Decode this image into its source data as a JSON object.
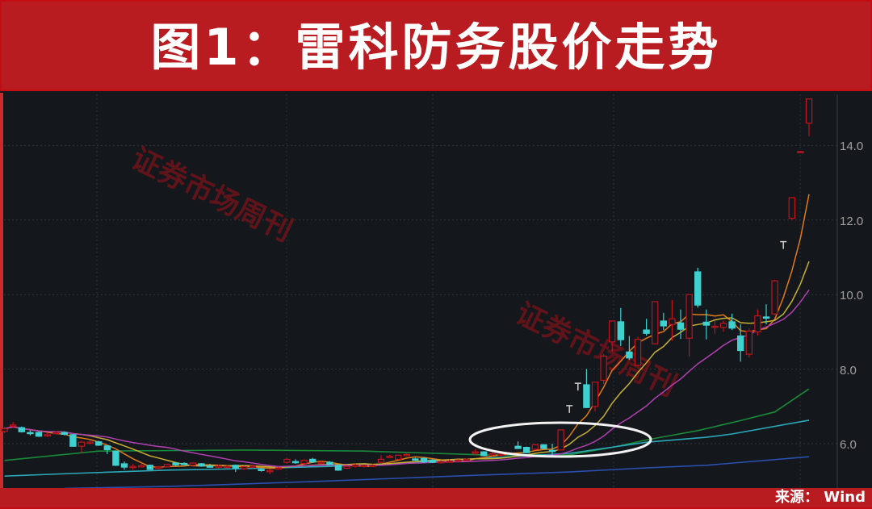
{
  "header": {
    "title": "图1：雷科防务股价走势"
  },
  "footer": {
    "source": "来源： Wind"
  },
  "watermark": "证券市场周刊",
  "colors": {
    "up": "#c0141c",
    "down": "#3fd0d0",
    "limit": "#d0d0d0",
    "ma_short": [
      "#e07b16",
      "#c8b030",
      "#b040b0"
    ],
    "background": "#14171c",
    "header": "#b81c21"
  },
  "chart_data": {
    "type": "candlestick",
    "title": "",
    "xlabel": "",
    "ylabel": "",
    "ylim": [
      4.8,
      15.4
    ],
    "yticks": [
      "6.0",
      "8.0",
      "10.0",
      "12.0",
      "14.0"
    ],
    "grid": true,
    "highlight": "ellipse around the breakout candles",
    "candles": [
      [
        6.33,
        6.45,
        6.28,
        6.4
      ],
      [
        6.49,
        6.58,
        6.42,
        6.5
      ],
      [
        6.43,
        6.46,
        6.3,
        6.32
      ],
      [
        6.3,
        6.36,
        6.22,
        6.29
      ],
      [
        6.3,
        6.33,
        6.18,
        6.2
      ],
      [
        6.22,
        6.3,
        6.18,
        6.24
      ],
      [
        6.3,
        6.34,
        6.26,
        6.3
      ],
      [
        6.3,
        6.33,
        6.22,
        6.25
      ],
      [
        6.24,
        6.26,
        5.92,
        5.93
      ],
      [
        5.93,
        6.08,
        5.75,
        6.04
      ],
      [
        6.03,
        6.1,
        5.98,
        6.04
      ],
      [
        6.05,
        6.08,
        5.94,
        5.96
      ],
      [
        5.94,
        5.96,
        5.72,
        5.84
      ],
      [
        5.8,
        5.82,
        5.4,
        5.42
      ],
      [
        5.46,
        5.52,
        5.3,
        5.37
      ],
      [
        5.38,
        5.45,
        5.3,
        5.39
      ],
      [
        5.4,
        5.48,
        5.36,
        5.41
      ],
      [
        5.42,
        5.44,
        5.3,
        5.31
      ],
      [
        5.35,
        5.4,
        5.32,
        5.37
      ],
      [
        5.38,
        5.46,
        5.36,
        5.44
      ],
      [
        5.48,
        5.51,
        5.4,
        5.43
      ],
      [
        5.47,
        5.5,
        5.42,
        5.44
      ],
      [
        5.42,
        5.5,
        5.4,
        5.48
      ],
      [
        5.46,
        5.48,
        5.38,
        5.4
      ],
      [
        5.4,
        5.46,
        5.36,
        5.39
      ],
      [
        5.38,
        5.44,
        5.34,
        5.4
      ],
      [
        5.36,
        5.42,
        5.34,
        5.39
      ],
      [
        5.42,
        5.44,
        5.24,
        5.35
      ],
      [
        5.33,
        5.4,
        5.3,
        5.38
      ],
      [
        5.37,
        5.42,
        5.34,
        5.4
      ],
      [
        5.31,
        5.34,
        5.25,
        5.29
      ],
      [
        5.26,
        5.32,
        5.18,
        5.28
      ],
      [
        5.34,
        5.38,
        5.3,
        5.35
      ],
      [
        5.5,
        5.62,
        5.46,
        5.58
      ],
      [
        5.52,
        5.58,
        5.46,
        5.51
      ],
      [
        5.47,
        5.58,
        5.44,
        5.55
      ],
      [
        5.58,
        5.62,
        5.48,
        5.51
      ],
      [
        5.49,
        5.54,
        5.46,
        5.5
      ],
      [
        5.5,
        5.53,
        5.42,
        5.44
      ],
      [
        5.42,
        5.45,
        5.27,
        5.29
      ],
      [
        5.34,
        5.42,
        5.32,
        5.39
      ],
      [
        5.39,
        5.46,
        5.36,
        5.43
      ],
      [
        5.39,
        5.44,
        5.36,
        5.42
      ],
      [
        5.42,
        5.45,
        5.39,
        5.42
      ],
      [
        5.5,
        5.69,
        5.48,
        5.58
      ],
      [
        5.66,
        5.7,
        5.62,
        5.66
      ],
      [
        5.58,
        5.7,
        5.56,
        5.69
      ],
      [
        5.71,
        5.76,
        5.66,
        5.71
      ],
      [
        5.59,
        5.62,
        5.55,
        5.58
      ],
      [
        5.6,
        5.64,
        5.48,
        5.51
      ],
      [
        5.56,
        5.58,
        5.48,
        5.5
      ],
      [
        5.5,
        5.55,
        5.47,
        5.52
      ],
      [
        5.53,
        5.58,
        5.5,
        5.53
      ],
      [
        5.55,
        5.58,
        5.52,
        5.56
      ],
      [
        5.57,
        5.6,
        5.54,
        5.58
      ],
      [
        5.77,
        5.85,
        5.7,
        5.78
      ],
      [
        5.78,
        5.8,
        5.66,
        5.68
      ],
      [
        5.72,
        5.78,
        5.66,
        5.73
      ],
      [
        5.71,
        5.76,
        5.66,
        5.72
      ],
      [
        5.74,
        5.78,
        5.7,
        5.75
      ],
      [
        5.93,
        6.06,
        5.86,
        5.87
      ],
      [
        5.9,
        5.92,
        5.74,
        5.76
      ],
      [
        5.85,
        5.99,
        5.82,
        5.97
      ],
      [
        5.97,
        5.99,
        5.85,
        5.87
      ],
      [
        5.82,
        6.0,
        5.64,
        5.8
      ],
      [
        5.83,
        6.37,
        5.82,
        6.37
      ],
      [
        7.0,
        7.02,
        7.0,
        7.0
      ],
      [
        7.6,
        7.62,
        7.6,
        7.6
      ],
      [
        7.58,
        8.0,
        6.95,
        6.97
      ],
      [
        7.0,
        7.66,
        6.87,
        7.65
      ],
      [
        7.7,
        8.4,
        7.6,
        8.35
      ],
      [
        8.73,
        9.3,
        8.47,
        9.29
      ],
      [
        9.27,
        9.64,
        8.62,
        8.79
      ],
      [
        8.46,
        8.89,
        8.25,
        8.3
      ],
      [
        8.1,
        8.87,
        8.08,
        8.8
      ],
      [
        9.05,
        9.35,
        8.9,
        8.96
      ],
      [
        8.68,
        9.82,
        8.66,
        9.81
      ],
      [
        9.29,
        9.51,
        9.05,
        9.16
      ],
      [
        9.2,
        9.85,
        8.76,
        9.35
      ],
      [
        9.24,
        9.6,
        8.81,
        9.07
      ],
      [
        8.83,
        10.0,
        8.33,
        10.0
      ],
      [
        10.61,
        10.72,
        9.65,
        9.72
      ],
      [
        9.26,
        9.6,
        8.8,
        9.18
      ],
      [
        9.12,
        9.3,
        8.95,
        9.15
      ],
      [
        9.12,
        9.3,
        9.0,
        9.23
      ],
      [
        9.27,
        9.49,
        9.05,
        9.1
      ],
      [
        8.89,
        9.2,
        8.2,
        8.5
      ],
      [
        8.4,
        9.09,
        8.31,
        9.02
      ],
      [
        9.0,
        9.6,
        8.9,
        9.43
      ],
      [
        9.4,
        9.74,
        9.2,
        9.38
      ],
      [
        9.48,
        10.4,
        9.45,
        10.37
      ],
      [
        11.4,
        11.42,
        11.4,
        11.4
      ],
      [
        12.05,
        12.62,
        12.0,
        12.6
      ],
      [
        13.84,
        13.85,
        13.83,
        13.84
      ],
      [
        14.6,
        15.25,
        14.25,
        15.25
      ]
    ],
    "candle_fields": [
      "open",
      "high",
      "low",
      "close"
    ],
    "limit_up_days": [
      66,
      67,
      91
    ],
    "long_lines": [
      {
        "color": "#1a8a3a",
        "points": [
          [
            0,
            5.55
          ],
          [
            11,
            5.8
          ],
          [
            28,
            5.83
          ],
          [
            42,
            5.8
          ],
          [
            56,
            5.7
          ],
          [
            66,
            5.7
          ],
          [
            71,
            5.9
          ],
          [
            75,
            6.1
          ],
          [
            81,
            6.35
          ],
          [
            86,
            6.62
          ],
          [
            90,
            6.85
          ],
          [
            94,
            7.47
          ]
        ]
      },
      {
        "color": "#2aa8b8",
        "points": [
          [
            0,
            5.13
          ],
          [
            9,
            5.21
          ],
          [
            19,
            5.29
          ],
          [
            28,
            5.33
          ],
          [
            38,
            5.39
          ],
          [
            47,
            5.48
          ],
          [
            56,
            5.61
          ],
          [
            66,
            5.74
          ],
          [
            75,
            6.04
          ],
          [
            82,
            6.17
          ],
          [
            85,
            6.26
          ],
          [
            94,
            6.63
          ]
        ]
      },
      {
        "color": "#2a4fb0",
        "points": [
          [
            7,
            4.8
          ],
          [
            19,
            4.85
          ],
          [
            28,
            4.92
          ],
          [
            38,
            5.0
          ],
          [
            47,
            5.08
          ],
          [
            56,
            5.16
          ],
          [
            66,
            5.24
          ],
          [
            75,
            5.35
          ],
          [
            82,
            5.42
          ],
          [
            94,
            5.65
          ]
        ]
      }
    ]
  }
}
